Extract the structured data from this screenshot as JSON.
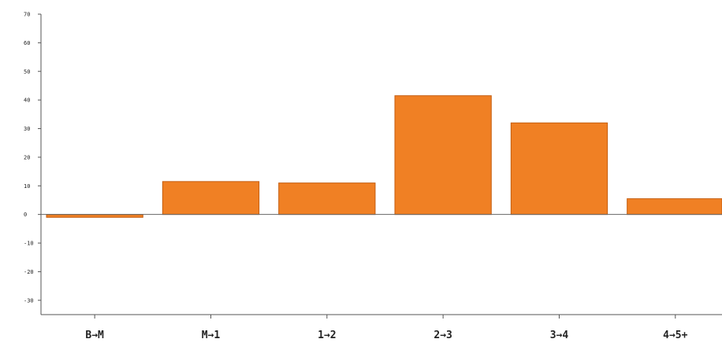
{
  "chart_data": {
    "type": "bar",
    "title": "",
    "xlabel": "",
    "ylabel": "",
    "categories": [
      "B→M",
      "M→1",
      "1→2",
      "2→3",
      "3→4",
      "4→5+"
    ],
    "values": [
      -1,
      11.5,
      11,
      41.5,
      32,
      5.5
    ],
    "ylim": [
      -35,
      70
    ],
    "yticks": [
      70,
      60,
      50,
      40,
      30,
      20,
      10,
      0,
      -10,
      -20,
      -30
    ],
    "ytick_labels": [
      "70",
      "60",
      "50",
      "40",
      "30",
      "20",
      "10",
      "0",
      "-10",
      "-20",
      "-30"
    ],
    "grid": false,
    "legend": "none",
    "bar_color": "#f08024"
  }
}
